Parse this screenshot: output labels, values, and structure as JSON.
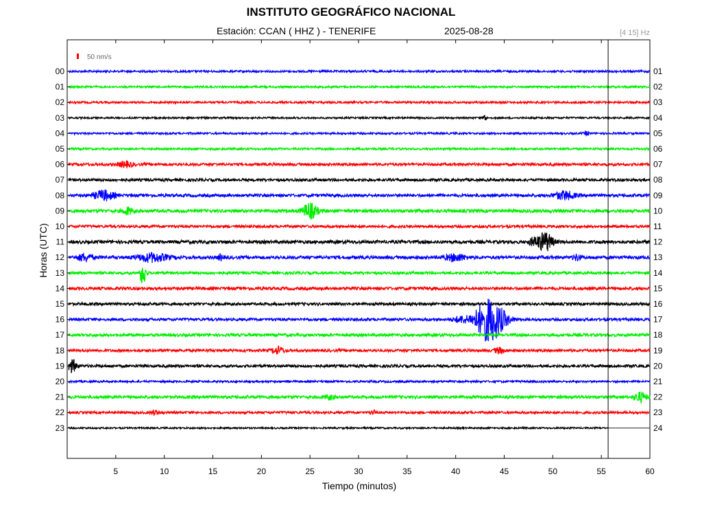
{
  "header": {
    "title": "INSTITUTO GEOGRÁFICO NACIONAL",
    "station_line": "Estación:  CCAN ( HHZ ) - TENERIFE",
    "date": "2025-08-28",
    "filter_band": "[4 15] Hz"
  },
  "chart_data": {
    "type": "line",
    "title": "INSTITUTO GEOGRÁFICO NACIONAL",
    "xlabel": "Tiempo (minutos)",
    "ylabel": "Horas (UTC)",
    "xlim": [
      0,
      60
    ],
    "x_ticks": [
      5,
      10,
      15,
      20,
      25,
      30,
      35,
      40,
      45,
      50,
      55,
      60
    ],
    "y_ticks_left": [
      "00",
      "01",
      "02",
      "03",
      "04",
      "05",
      "06",
      "07",
      "08",
      "09",
      "10",
      "11",
      "12",
      "13",
      "14",
      "15",
      "16",
      "17",
      "18",
      "19",
      "20",
      "21",
      "22",
      "23"
    ],
    "y_ticks_right": [
      "01",
      "02",
      "03",
      "04",
      "05",
      "06",
      "07",
      "08",
      "09",
      "10",
      "11",
      "12",
      "13",
      "14",
      "15",
      "16",
      "17",
      "18",
      "19",
      "20",
      "21",
      "22",
      "23",
      "24"
    ],
    "scale_bar": "50 nm/s",
    "current_time_minute": 55.7,
    "trace_colors": [
      "#0000ff",
      "#00ee00",
      "#ff0000",
      "#000000"
    ],
    "traces": [
      {
        "hour": "00",
        "color": "#0000ff",
        "noise": 1.5,
        "events": []
      },
      {
        "hour": "01",
        "color": "#00ee00",
        "noise": 1.5,
        "events": []
      },
      {
        "hour": "02",
        "color": "#ff0000",
        "noise": 1.5,
        "events": []
      },
      {
        "hour": "03",
        "color": "#000000",
        "noise": 1.3,
        "events": [
          {
            "minute": 43.0,
            "amp": 6,
            "dur": 0.3
          }
        ]
      },
      {
        "hour": "04",
        "color": "#0000ff",
        "noise": 1.4,
        "events": [
          {
            "minute": 53.5,
            "amp": 3,
            "dur": 0.5
          }
        ]
      },
      {
        "hour": "05",
        "color": "#00ee00",
        "noise": 1.5,
        "events": []
      },
      {
        "hour": "06",
        "color": "#ff0000",
        "noise": 2.0,
        "events": [
          {
            "minute": 6.0,
            "amp": 4,
            "dur": 1.5
          }
        ]
      },
      {
        "hour": "07",
        "color": "#000000",
        "noise": 2.0,
        "events": []
      },
      {
        "hour": "08",
        "color": "#0000ff",
        "noise": 2.2,
        "events": [
          {
            "minute": 3.8,
            "amp": 7,
            "dur": 2
          },
          {
            "minute": 51.2,
            "amp": 6,
            "dur": 2
          }
        ]
      },
      {
        "hour": "09",
        "color": "#00ee00",
        "noise": 2.4,
        "events": [
          {
            "minute": 6.2,
            "amp": 5,
            "dur": 1
          },
          {
            "minute": 25.0,
            "amp": 11,
            "dur": 1.5
          }
        ]
      },
      {
        "hour": "10",
        "color": "#ff0000",
        "noise": 2.0,
        "events": []
      },
      {
        "hour": "11",
        "color": "#000000",
        "noise": 2.4,
        "events": [
          {
            "minute": 48.0,
            "amp": 5,
            "dur": 1
          },
          {
            "minute": 49.2,
            "amp": 14,
            "dur": 1.5
          }
        ]
      },
      {
        "hour": "12",
        "color": "#0000ff",
        "noise": 2.4,
        "events": [
          {
            "minute": 1.8,
            "amp": 5,
            "dur": 1.5
          },
          {
            "minute": 8.8,
            "amp": 6,
            "dur": 3
          },
          {
            "minute": 15.8,
            "amp": 4,
            "dur": 0.5
          },
          {
            "minute": 40.0,
            "amp": 5,
            "dur": 2
          },
          {
            "minute": 52.5,
            "amp": 4,
            "dur": 0.8
          }
        ]
      },
      {
        "hour": "13",
        "color": "#00ee00",
        "noise": 2.0,
        "events": [
          {
            "minute": 7.8,
            "amp": 18,
            "dur": 0.6
          }
        ]
      },
      {
        "hour": "14",
        "color": "#ff0000",
        "noise": 2.2,
        "events": []
      },
      {
        "hour": "15",
        "color": "#000000",
        "noise": 2.0,
        "events": []
      },
      {
        "hour": "16",
        "color": "#0000ff",
        "noise": 2.0,
        "events": [
          {
            "minute": 40.5,
            "amp": 4,
            "dur": 1.5
          },
          {
            "minute": 43.5,
            "amp": 32,
            "dur": 3
          }
        ]
      },
      {
        "hour": "17",
        "color": "#00ee00",
        "noise": 2.2,
        "events": []
      },
      {
        "hour": "18",
        "color": "#ff0000",
        "noise": 2.0,
        "events": [
          {
            "minute": 21.7,
            "amp": 5,
            "dur": 1.2
          },
          {
            "minute": 44.5,
            "amp": 4,
            "dur": 1
          }
        ]
      },
      {
        "hour": "19",
        "color": "#000000",
        "noise": 2.0,
        "events": [
          {
            "minute": 0.5,
            "amp": 9,
            "dur": 1
          }
        ]
      },
      {
        "hour": "20",
        "color": "#0000ff",
        "noise": 1.5,
        "events": []
      },
      {
        "hour": "21",
        "color": "#00ee00",
        "noise": 2.2,
        "events": [
          {
            "minute": 27.0,
            "amp": 3,
            "dur": 1
          },
          {
            "minute": 59.0,
            "amp": 7,
            "dur": 1.2
          }
        ]
      },
      {
        "hour": "22",
        "color": "#ff0000",
        "noise": 1.8,
        "events": [
          {
            "minute": 9.0,
            "amp": 3,
            "dur": 0.8
          },
          {
            "minute": 31.5,
            "amp": 3,
            "dur": 0.5
          }
        ]
      },
      {
        "hour": "23",
        "color": "#000000",
        "noise": 1.2,
        "events": [],
        "ends_at_minute": 55.7
      }
    ]
  }
}
